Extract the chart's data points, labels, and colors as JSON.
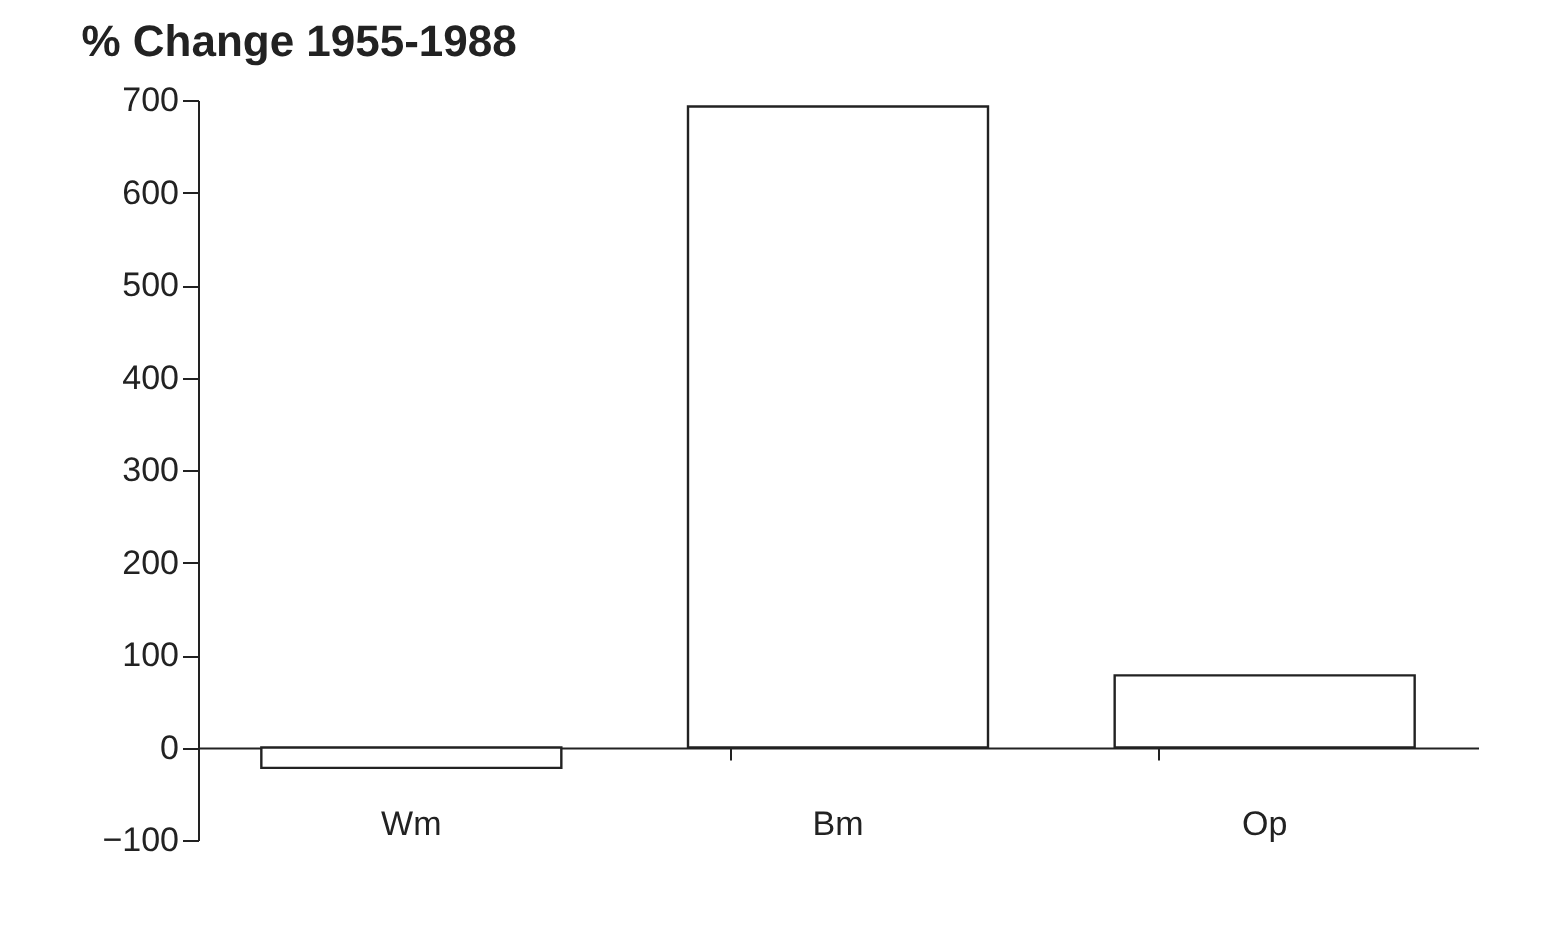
{
  "chart_data": {
    "type": "bar",
    "title": "% Change  1955-1988",
    "categories": [
      "Wm",
      "Bm",
      "Op"
    ],
    "values": [
      -22,
      693,
      78
    ],
    "color": "#ffffff",
    "ylim": [
      -100,
      700
    ],
    "yticks": [
      -100,
      0,
      100,
      200,
      300,
      400,
      500,
      600,
      700
    ],
    "grid": false
  }
}
